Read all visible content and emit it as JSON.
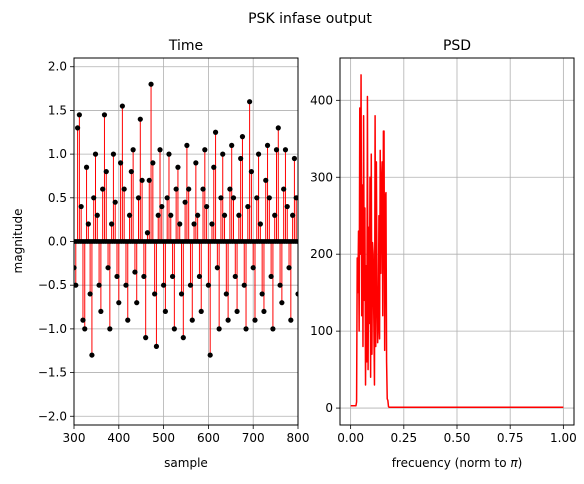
{
  "figure": {
    "suptitle": "PSK infase output"
  },
  "chart_data": [
    {
      "type": "stem",
      "title": "Time",
      "xlabel": "sample",
      "ylabel": "magnitude",
      "xlim": [
        300,
        800
      ],
      "ylim": [
        -2.1,
        2.1
      ],
      "xticks": [
        300,
        400,
        500,
        600,
        700,
        800
      ],
      "yticks": [
        -2.0,
        -1.5,
        -1.0,
        -0.5,
        0.0,
        0.5,
        1.0,
        1.5,
        2.0
      ],
      "xtick_labels": [
        "300",
        "400",
        "500",
        "600",
        "700",
        "800"
      ],
      "ytick_labels": [
        "−2.0",
        "−1.5",
        "−1.0",
        "−0.5",
        "0.0",
        "0.5",
        "1.0",
        "1.5",
        "2.0"
      ],
      "grid": true,
      "colors": {
        "stem": "#ff0000",
        "marker": "#000000"
      },
      "series": {
        "x_start": 300,
        "x_step": 4,
        "values": [
          -0.3,
          -0.5,
          1.3,
          1.45,
          0.4,
          -0.9,
          -1.0,
          0.85,
          0.2,
          -0.6,
          -1.3,
          0.5,
          1.0,
          0.3,
          -0.5,
          -0.8,
          0.6,
          1.45,
          0.8,
          -0.3,
          -1.0,
          0.2,
          1.0,
          0.45,
          -0.4,
          -0.7,
          0.9,
          1.55,
          0.6,
          -0.5,
          -0.9,
          0.3,
          0.8,
          1.05,
          -0.35,
          -0.7,
          0.5,
          1.4,
          0.7,
          -0.4,
          -1.1,
          0.1,
          0.7,
          1.8,
          0.9,
          -0.6,
          -1.2,
          0.3,
          1.05,
          0.4,
          -0.5,
          -0.8,
          0.5,
          1.0,
          0.3,
          -0.4,
          -1.0,
          0.6,
          0.85,
          0.2,
          -0.6,
          -1.1,
          0.45,
          1.1,
          0.6,
          -0.5,
          -0.9,
          0.2,
          0.9,
          0.3,
          -0.4,
          -0.8,
          0.6,
          1.05,
          0.4,
          -0.5,
          -1.3,
          0.2,
          0.85,
          1.25,
          -0.3,
          -1.0,
          0.5,
          1.0,
          0.3,
          -0.6,
          -0.9,
          0.6,
          1.1,
          0.5,
          -0.4,
          -0.8,
          0.3,
          0.95,
          1.2,
          -0.5,
          -1.0,
          0.4,
          1.6,
          0.8,
          -0.3,
          -0.9,
          0.5,
          1.0,
          0.2,
          -0.6,
          -0.8,
          0.7,
          1.1,
          0.5,
          -0.4,
          -1.0,
          0.3,
          1.05,
          1.3,
          -0.5,
          -0.7,
          0.6,
          1.05,
          0.4,
          -0.3,
          -0.9,
          0.3,
          0.95,
          0.5,
          -0.6
        ]
      }
    },
    {
      "type": "line",
      "title": "PSD",
      "xlabel_prefix": "frecuency (norm to ",
      "xlabel_symbol": "π",
      "xlabel_suffix": ")",
      "xlim": [
        -0.05,
        1.05
      ],
      "ylim": [
        -22,
        455
      ],
      "xticks": [
        0.0,
        0.25,
        0.5,
        0.75,
        1.0
      ],
      "yticks": [
        0,
        100,
        200,
        300,
        400
      ],
      "xtick_labels": [
        "0.00",
        "0.25",
        "0.50",
        "0.75",
        "1.00"
      ],
      "ytick_labels": [
        "0",
        "100",
        "200",
        "300",
        "400"
      ],
      "grid": true,
      "colors": {
        "line": "#ff0000"
      },
      "series": {
        "x": [
          0.0,
          0.025,
          0.028,
          0.031,
          0.034,
          0.037,
          0.04,
          0.043,
          0.046,
          0.049,
          0.052,
          0.055,
          0.058,
          0.061,
          0.064,
          0.067,
          0.07,
          0.073,
          0.076,
          0.079,
          0.082,
          0.085,
          0.088,
          0.091,
          0.094,
          0.097,
          0.1,
          0.103,
          0.106,
          0.109,
          0.112,
          0.115,
          0.118,
          0.121,
          0.124,
          0.127,
          0.13,
          0.133,
          0.136,
          0.139,
          0.142,
          0.145,
          0.148,
          0.151,
          0.154,
          0.157,
          0.16,
          0.163,
          0.166,
          0.169,
          0.172,
          0.175,
          0.178,
          0.181,
          0.184,
          0.187,
          0.19,
          0.2,
          0.22,
          0.3,
          0.5,
          0.75,
          1.0
        ],
        "y": [
          3,
          3,
          8,
          195,
          150,
          230,
          100,
          390,
          200,
          433,
          120,
          290,
          80,
          380,
          140,
          260,
          30,
          185,
          60,
          405,
          50,
          235,
          110,
          300,
          40,
          330,
          70,
          215,
          200,
          115,
          30,
          380,
          80,
          320,
          155,
          85,
          110,
          250,
          90,
          335,
          175,
          290,
          320,
          120,
          360,
          360,
          75,
          275,
          280,
          60,
          12,
          10,
          2,
          1,
          1,
          1,
          1,
          1,
          1,
          1,
          1,
          1,
          1
        ]
      }
    }
  ]
}
